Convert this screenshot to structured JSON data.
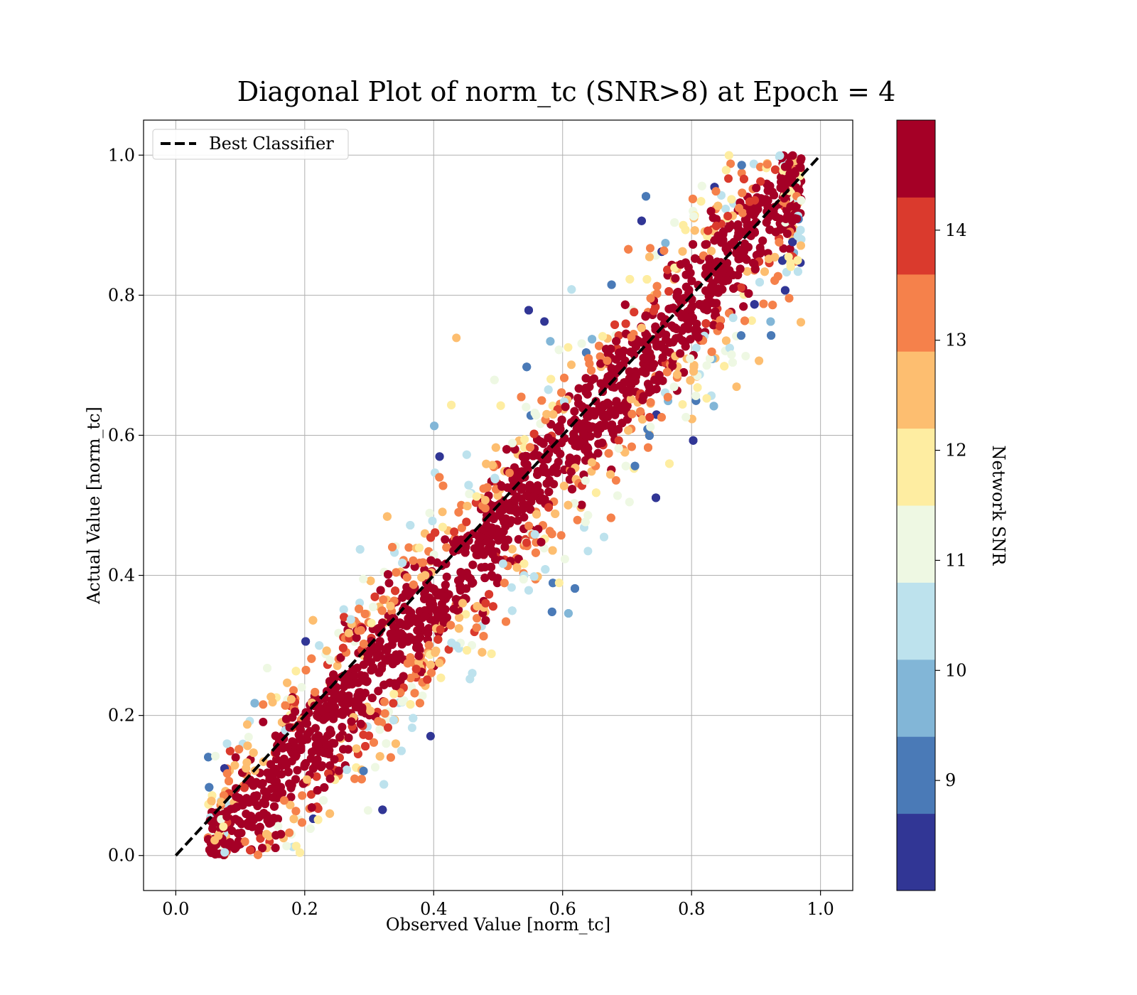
{
  "chart_data": {
    "type": "scatter",
    "title": "Diagonal Plot of norm_tc (SNR>8) at Epoch = 4",
    "xlabel": "Observed Value [norm_tc]",
    "ylabel": "Actual Value [norm_tc]",
    "xlim": [
      -0.05,
      1.05
    ],
    "ylim": [
      -0.05,
      1.05
    ],
    "xticks": [
      "0.0",
      "0.2",
      "0.4",
      "0.6",
      "0.8",
      "1.0"
    ],
    "yticks": [
      "0.0",
      "0.2",
      "0.4",
      "0.6",
      "0.8",
      "1.0"
    ],
    "grid": true,
    "legend": {
      "placement": "upper-left",
      "entries": [
        {
          "label": "Best Classifier",
          "style": "dashed",
          "color": "#000000"
        }
      ]
    },
    "reference_line": {
      "x": [
        0,
        1
      ],
      "y": [
        0,
        1
      ]
    },
    "colorbar": {
      "label": "Network SNR",
      "range": [
        8,
        15
      ],
      "ticks": [
        "9",
        "10",
        "11",
        "12",
        "13",
        "14"
      ],
      "bins": [
        {
          "from": 8,
          "to": 8.7,
          "color": "#313695"
        },
        {
          "from": 8.7,
          "to": 9.4,
          "color": "#4a7ab7"
        },
        {
          "from": 9.4,
          "to": 10.1,
          "color": "#82b6d7"
        },
        {
          "from": 10.1,
          "to": 10.8,
          "color": "#bde2ed"
        },
        {
          "from": 10.8,
          "to": 11.5,
          "color": "#eef8e3"
        },
        {
          "from": 11.5,
          "to": 12.2,
          "color": "#feeda1"
        },
        {
          "from": 12.2,
          "to": 12.9,
          "color": "#fdbe70"
        },
        {
          "from": 12.9,
          "to": 13.6,
          "color": "#f5814b"
        },
        {
          "from": 13.6,
          "to": 14.3,
          "color": "#da3a2d"
        },
        {
          "from": 14.3,
          "to": 15,
          "color": "#a50026"
        }
      ]
    }
  }
}
